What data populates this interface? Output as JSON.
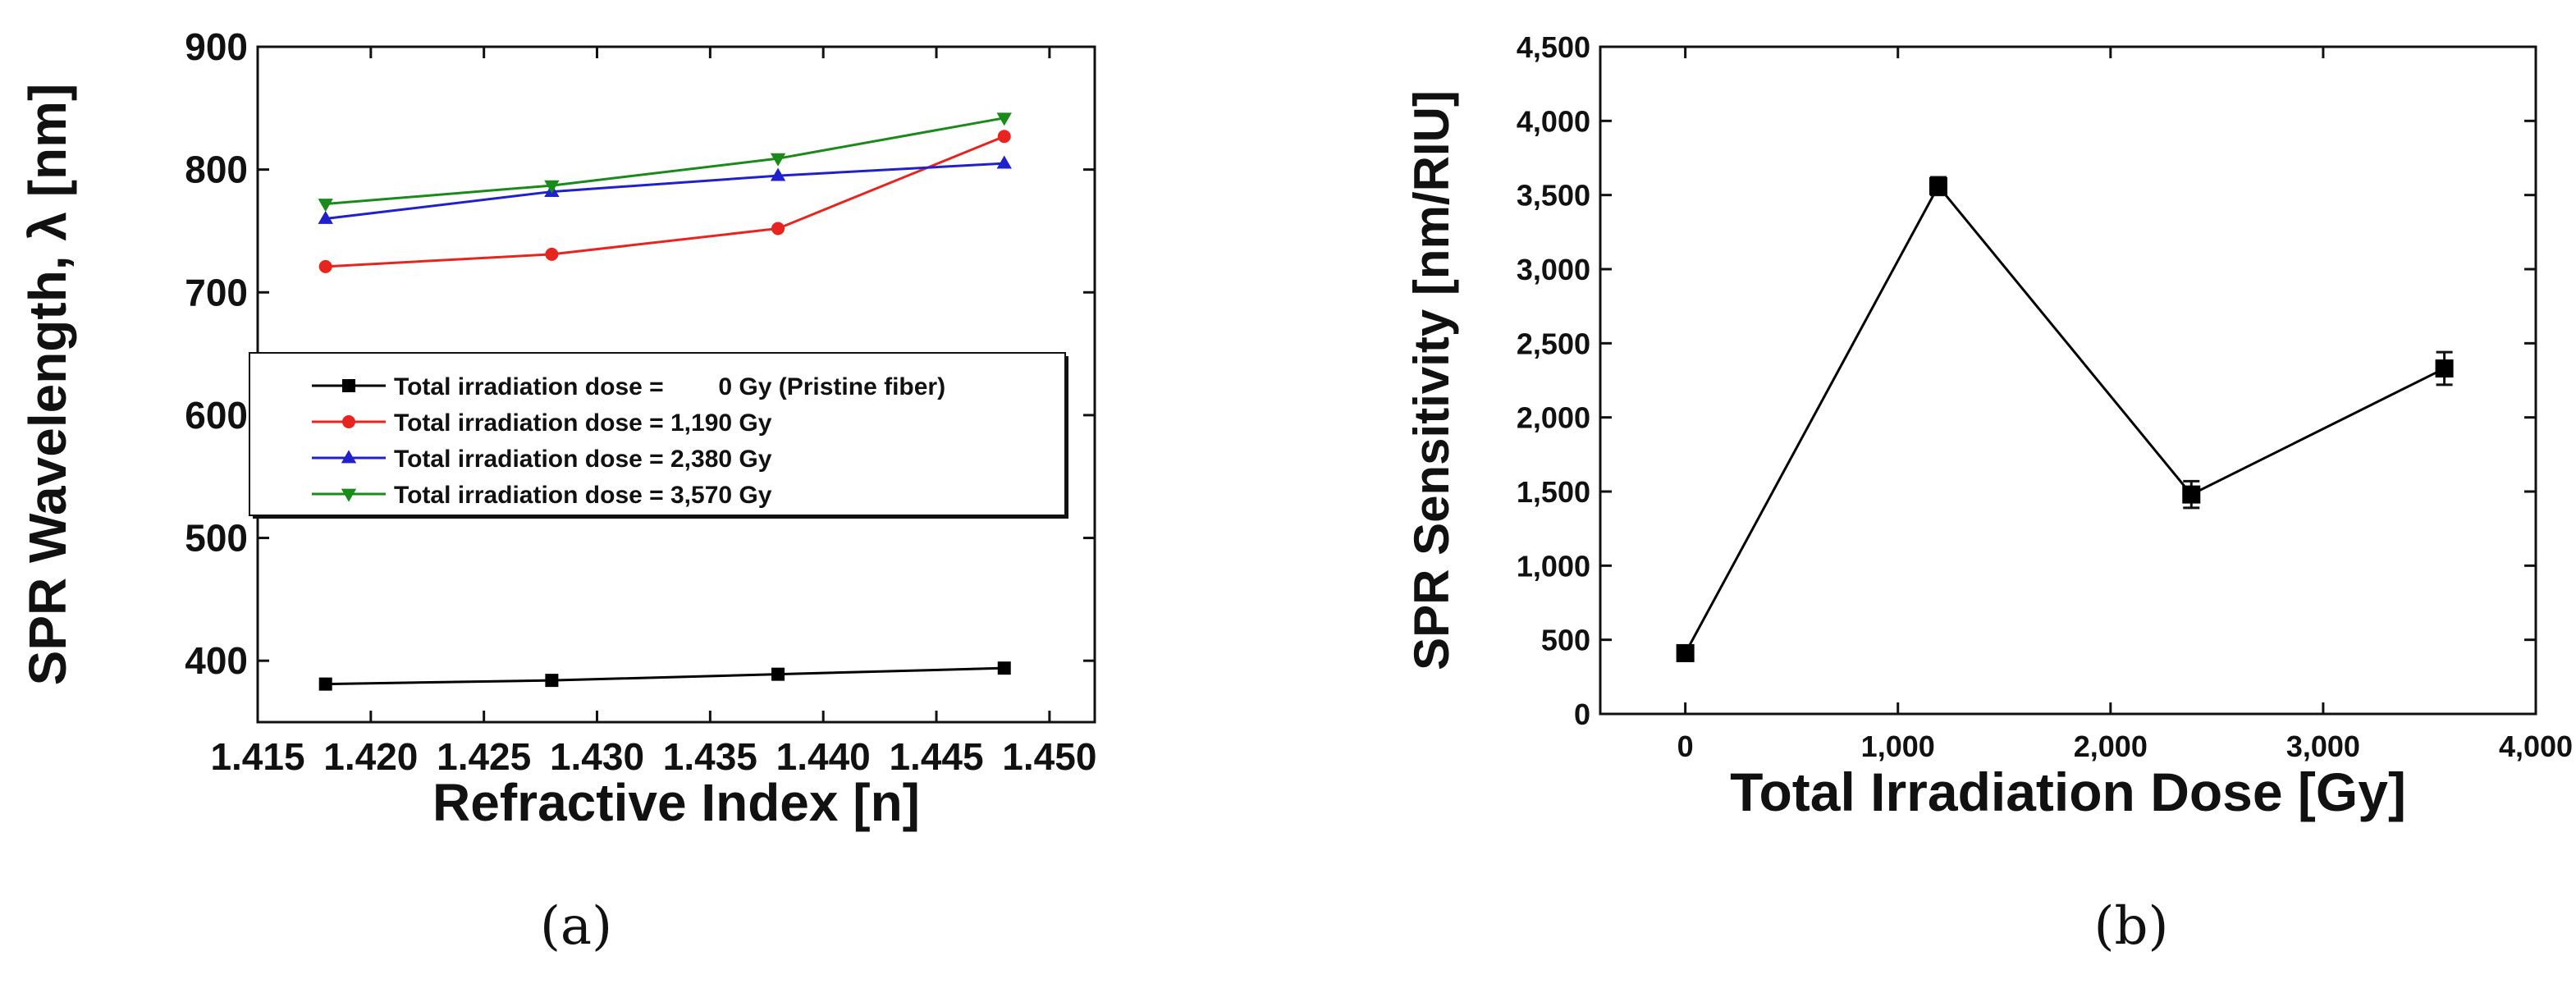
{
  "chart_data": [
    {
      "type": "line",
      "panel_label": "(a)",
      "xlabel": "Refractive Index [n]",
      "ylabel": "SPR Wavelength, λ [nm]",
      "xlim": [
        1.415,
        1.452
      ],
      "ylim": [
        350,
        900
      ],
      "x_ticks": [
        1.415,
        1.42,
        1.425,
        1.43,
        1.435,
        1.44,
        1.445,
        1.45
      ],
      "x_tick_labels": [
        "1.415",
        "1.420",
        "1.425",
        "1.430",
        "1.435",
        "1.440",
        "1.445",
        "1.450"
      ],
      "y_ticks": [
        400,
        500,
        600,
        700,
        800,
        900
      ],
      "y_tick_labels": [
        "400",
        "500",
        "600",
        "700",
        "800",
        "900"
      ],
      "x": [
        1.418,
        1.428,
        1.438,
        1.448
      ],
      "legend_position": "center-left",
      "series": [
        {
          "name": "Total irradiation dose =        0 Gy (Pristine fiber)",
          "color": "#000000",
          "marker": "square",
          "values": [
            381,
            384,
            389,
            394
          ]
        },
        {
          "name": "Total irradiation dose = 1,190 Gy",
          "color": "#e8241f",
          "marker": "circle",
          "values": [
            721,
            731,
            752,
            827
          ]
        },
        {
          "name": "Total irradiation dose = 2,380 Gy",
          "color": "#2020cc",
          "marker": "triangle-up",
          "values": [
            760,
            782,
            795,
            805
          ]
        },
        {
          "name": "Total irradiation dose = 3,570 Gy",
          "color": "#1a8a1a",
          "marker": "triangle-down",
          "values": [
            772,
            787,
            809,
            842
          ]
        }
      ]
    },
    {
      "type": "line",
      "panel_label": "(b)",
      "xlabel": "Total Irradiation Dose [Gy]",
      "ylabel": "SPR Sensitivity [nm/RIU]",
      "xlim": [
        -400,
        4000
      ],
      "ylim": [
        0,
        4500
      ],
      "x_ticks": [
        0,
        1000,
        2000,
        3000,
        4000
      ],
      "x_tick_labels": [
        "0",
        "1,000",
        "2,000",
        "3,000",
        "4,000"
      ],
      "y_ticks": [
        0,
        500,
        1000,
        1500,
        2000,
        2500,
        3000,
        3500,
        4000,
        4500
      ],
      "y_tick_labels": [
        "0",
        "500",
        "1,000",
        "1,500",
        "2,000",
        "2,500",
        "3,000",
        "3,500",
        "4,000",
        "4,500"
      ],
      "series": [
        {
          "name": "SPR Sensitivity",
          "color": "#000000",
          "marker": "square",
          "x": [
            0,
            1190,
            2380,
            3570
          ],
          "values": [
            410,
            3560,
            1480,
            2330
          ],
          "errors": [
            30,
            60,
            90,
            110
          ]
        }
      ]
    }
  ]
}
